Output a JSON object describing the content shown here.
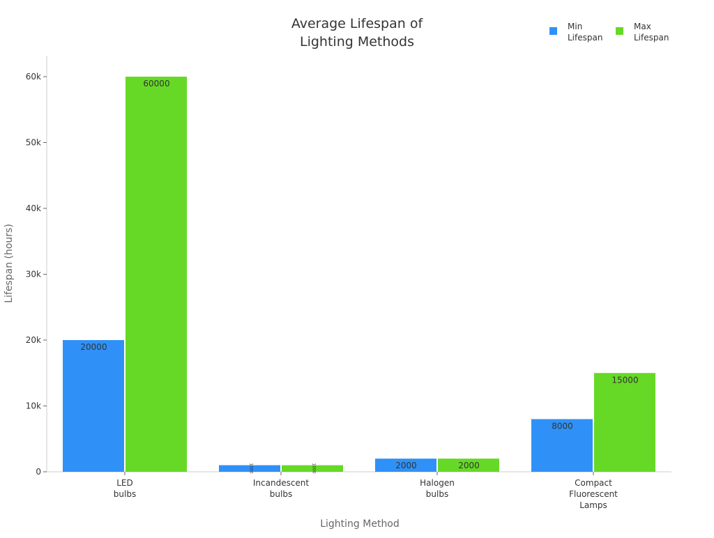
{
  "chart_data": {
    "type": "bar",
    "title": [
      "Average Lifespan of",
      "Lighting Methods"
    ],
    "xlabel": "Lighting Method",
    "ylabel": "Lifespan (hours)",
    "categories": [
      [
        "LED",
        "bulbs"
      ],
      [
        "Incandescent",
        "bulbs"
      ],
      [
        "Halogen",
        "bulbs"
      ],
      [
        "Compact",
        "Fluorescent",
        "Lamps"
      ]
    ],
    "series": [
      {
        "name": [
          "Min",
          "Lifespan"
        ],
        "color": "#2f91f7",
        "values": [
          20000,
          1000,
          2000,
          8000
        ]
      },
      {
        "name": [
          "Max",
          "Lifespan"
        ],
        "color": "#66d926",
        "values": [
          60000,
          1000,
          2000,
          15000
        ]
      }
    ],
    "ylim": [
      0,
      63000
    ],
    "yticks": [
      0,
      10000,
      20000,
      30000,
      40000,
      50000,
      60000
    ],
    "ytick_labels": [
      "0",
      "10k",
      "20k",
      "30k",
      "40k",
      "50k",
      "60k"
    ],
    "grid": false,
    "legend": "top-right"
  }
}
